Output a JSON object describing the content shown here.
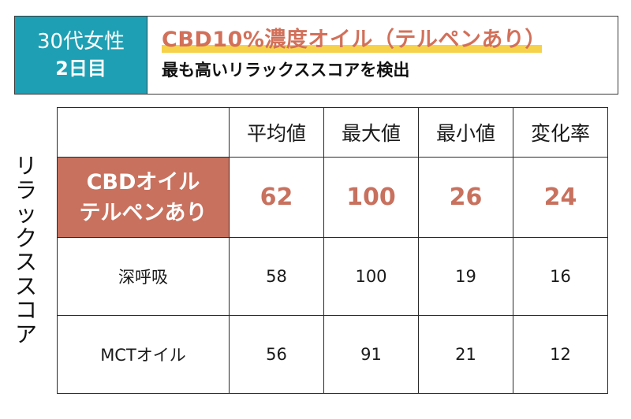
{
  "header": {
    "badge_line1": "30代女性",
    "badge_line2": "2日目",
    "headline": "CBD10%濃度オイル（テルペンあり）",
    "subline": "最も高いリラックススコアを検出"
  },
  "axis_label": [
    "リ",
    "ラ",
    "ッ",
    "ク",
    "ス",
    "ス",
    "コ",
    "ア"
  ],
  "table": {
    "columns": [
      "",
      "平均値",
      "最大値",
      "最小値",
      "変化率"
    ],
    "rows": [
      {
        "label_line1": "CBDオイル",
        "label_line2": "テルペンあり",
        "values": [
          "62",
          "100",
          "26",
          "24"
        ]
      },
      {
        "label": "深呼吸",
        "values": [
          "58",
          "100",
          "19",
          "16"
        ]
      },
      {
        "label": "MCTオイル",
        "values": [
          "56",
          "91",
          "21",
          "12"
        ]
      }
    ]
  },
  "colors": {
    "badge_bg": "#1f9fb3",
    "accent": "#c8715e",
    "headline_highlight": "#f6d24a"
  }
}
